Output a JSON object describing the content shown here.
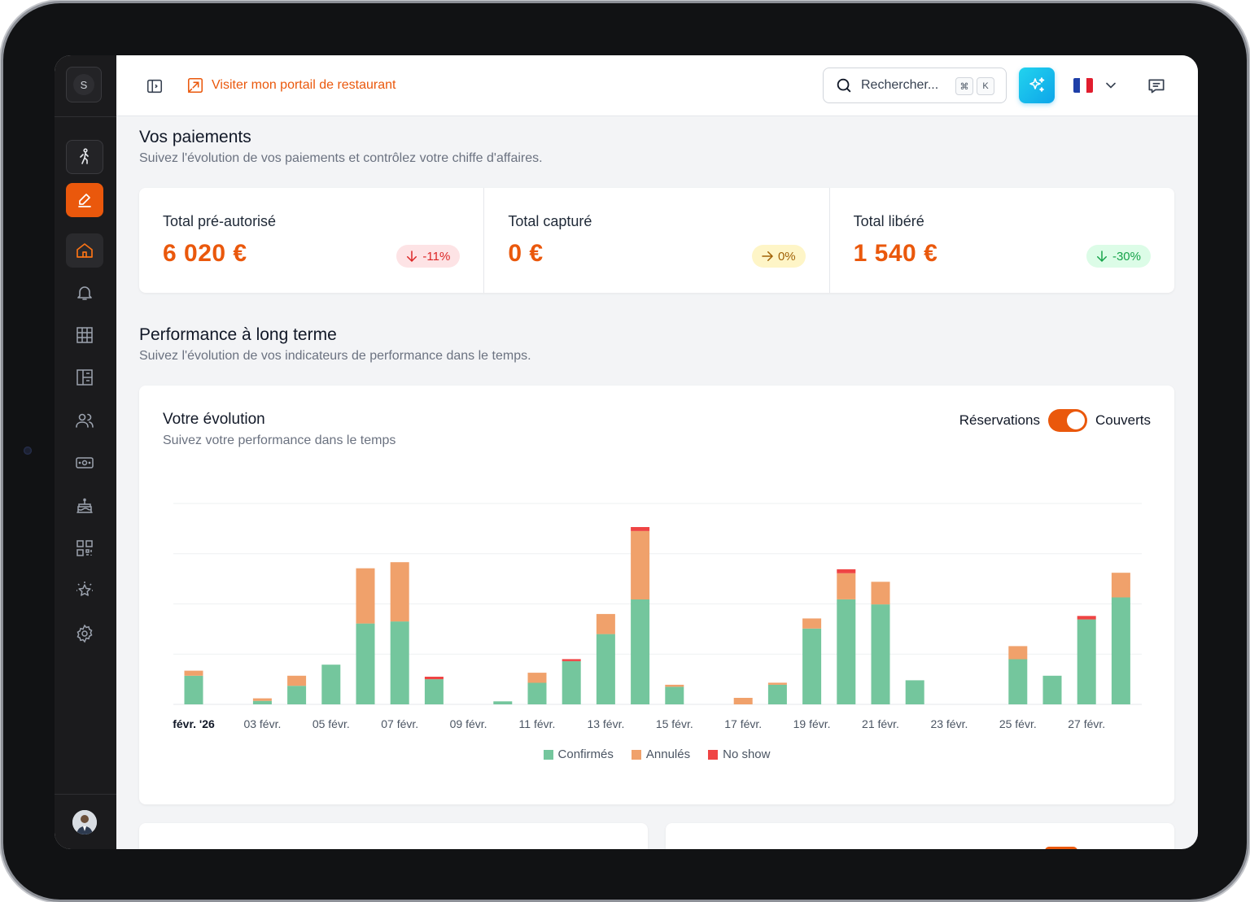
{
  "sidebar": {
    "logo_letter": "S",
    "items": [
      {
        "name": "walk-icon"
      },
      {
        "name": "edit-icon"
      },
      {
        "name": "home-icon"
      },
      {
        "name": "bell-icon"
      },
      {
        "name": "grid-icon"
      },
      {
        "name": "floorplan-icon"
      },
      {
        "name": "users-icon"
      },
      {
        "name": "payment-icon"
      },
      {
        "name": "cake-icon"
      },
      {
        "name": "qr-code-icon"
      },
      {
        "name": "star-icon"
      },
      {
        "name": "gear-icon"
      }
    ]
  },
  "topbar": {
    "portal_link": "Visiter mon portail de restaurant",
    "search_placeholder": "Rechercher...",
    "shortcut_cmd": "⌘",
    "shortcut_key": "K",
    "flag_colors": [
      "#1e3fa8",
      "#ffffff",
      "#e11d2e"
    ],
    "accent": "#ea580c"
  },
  "payments": {
    "title": "Vos paiements",
    "subtitle": "Suivez l'évolution de vos paiements et contrôlez votre chiffe d'affaires.",
    "stats": [
      {
        "label": "Total pré-autorisé",
        "value": "6 020 €",
        "change": "-11%",
        "trend": "down",
        "tone": "red"
      },
      {
        "label": "Total capturé",
        "value": "0 €",
        "change": "0%",
        "trend": "flat",
        "tone": "yellow"
      },
      {
        "label": "Total libéré",
        "value": "1 540 €",
        "change": "-30%",
        "trend": "down",
        "tone": "green"
      }
    ]
  },
  "performance": {
    "title": "Performance à long terme",
    "subtitle": "Suivez l'évolution de vos indicateurs de performance dans le temps."
  },
  "evolution": {
    "title": "Votre évolution",
    "subtitle": "Suivez votre performance dans le temps",
    "toggle_left": "Réservations",
    "toggle_right": "Couverts",
    "toggle_on": true
  },
  "chart_data": {
    "type": "bar",
    "stacked": true,
    "grid": true,
    "ylim": [
      0,
      40
    ],
    "categories": [
      "févr. '26",
      "02 févr.",
      "03 févr.",
      "04 févr.",
      "05 févr.",
      "06 févr.",
      "07 févr.",
      "08 févr.",
      "09 févr.",
      "10 févr.",
      "11 févr.",
      "12 févr.",
      "13 févr.",
      "14 févr.",
      "15 févr.",
      "16 févr.",
      "17 févr.",
      "18 févr.",
      "19 févr.",
      "20 févr.",
      "21 févr.",
      "22 févr.",
      "23 févr.",
      "24 févr.",
      "25 févr.",
      "26 févr.",
      "27 févr.",
      "28 févr."
    ],
    "tick_labels": [
      "févr. '26",
      "03 févr.",
      "05 févr.",
      "07 févr.",
      "09 févr.",
      "11 févr.",
      "13 févr.",
      "15 févr.",
      "17 févr.",
      "19 févr.",
      "21 févr.",
      "23 févr.",
      "25 févr.",
      "27 févr."
    ],
    "series": [
      {
        "name": "Confirmés",
        "color": "#74c69d",
        "values": [
          5.7,
          0,
          0.7,
          3.7,
          7.9,
          16.1,
          16.5,
          5,
          0,
          0.6,
          4.3,
          8.6,
          14,
          20.9,
          3.5,
          0,
          0,
          3.9,
          15.1,
          20.9,
          19.9,
          4.8,
          0,
          0,
          9,
          5.7,
          16.9,
          21.3
        ]
      },
      {
        "name": "Annulés",
        "color": "#f0a16b",
        "values": [
          1,
          0,
          0.5,
          2,
          0,
          11,
          11.8,
          0,
          0,
          0,
          2,
          0,
          4,
          13.6,
          0.4,
          0,
          1.3,
          0.4,
          2,
          5.2,
          4.5,
          0,
          0,
          0,
          2.6,
          0,
          0,
          4.9
        ]
      },
      {
        "name": "No show",
        "color": "#ef4444",
        "values": [
          0,
          0,
          0,
          0,
          0,
          0,
          0,
          0.5,
          0,
          0,
          0,
          0.4,
          0,
          0.8,
          0,
          0,
          0,
          0,
          0,
          0.8,
          0,
          0,
          0,
          0,
          0,
          0,
          0.7,
          0
        ]
      }
    ]
  }
}
